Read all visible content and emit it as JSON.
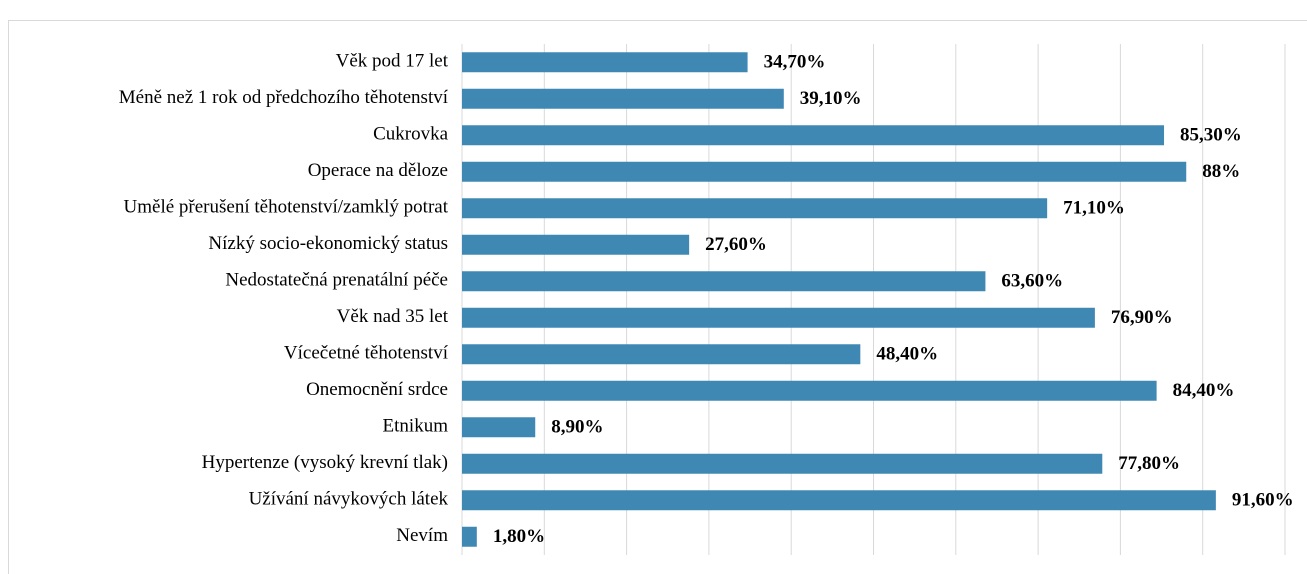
{
  "chart_data": {
    "type": "bar",
    "orientation": "horizontal",
    "categories": [
      "Věk pod 17 let",
      "Méně než 1 rok od předchozího těhotenství",
      "Cukrovka",
      "Operace na děloze",
      "Umělé přerušení těhotenství/zamklý potrat",
      "Nízký socio-ekonomický status",
      "Nedostatečná prenatální péče",
      "Věk nad 35 let",
      "Vícečetné těhotenství",
      "Onemocnění srdce",
      "Etnikum",
      "Hypertenze (vysoký krevní tlak)",
      "Užívání návykových látek",
      "Nevím"
    ],
    "values": [
      34.7,
      39.1,
      85.3,
      88,
      71.1,
      27.6,
      63.6,
      76.9,
      48.4,
      84.4,
      8.9,
      77.8,
      91.6,
      1.8
    ],
    "value_labels": [
      "34,70%",
      "39,10%",
      "85,30%",
      "88%",
      "71,10%",
      "27,60%",
      "63,60%",
      "76,90%",
      "48,40%",
      "84,40%",
      "8,90%",
      "77,80%",
      "91,60%",
      "1,80%"
    ],
    "color": "#4088b4",
    "xlim": [
      0,
      100
    ],
    "xticks": [
      0,
      10,
      20,
      30,
      40,
      50,
      60,
      70,
      80,
      90,
      100
    ],
    "show_tick_labels": false,
    "grid": true
  }
}
